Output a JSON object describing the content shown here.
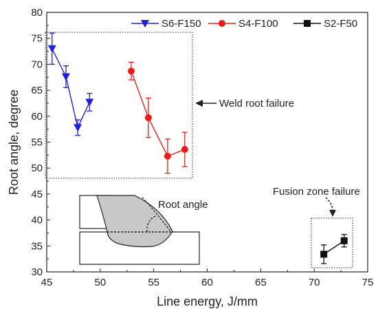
{
  "chart_data": {
    "type": "scatter",
    "xlabel": "Line energy, J/mm",
    "ylabel": "Root angle, degree",
    "xlim": [
      45,
      75
    ],
    "ylim": [
      30,
      80
    ],
    "xticks": [
      45,
      50,
      55,
      60,
      65,
      70,
      75
    ],
    "yticks": [
      30,
      35,
      40,
      45,
      50,
      55,
      60,
      65,
      70,
      75,
      80
    ],
    "legend_position": "top-right",
    "series": [
      {
        "name": "S6-F150",
        "color": "#1f1fd6",
        "marker": "triangle-down",
        "points": [
          {
            "x": 45.5,
            "y": 73.0,
            "err": 3.0
          },
          {
            "x": 46.8,
            "y": 67.6,
            "err": 2.1
          },
          {
            "x": 47.9,
            "y": 57.8,
            "err": 1.5
          },
          {
            "x": 49.0,
            "y": 62.7,
            "err": 1.7
          }
        ]
      },
      {
        "name": "S4-F100",
        "color": "#ee1b1b",
        "marker": "circle",
        "points": [
          {
            "x": 52.9,
            "y": 68.7,
            "err": 1.7
          },
          {
            "x": 54.5,
            "y": 59.7,
            "err": 3.8
          },
          {
            "x": 56.3,
            "y": 52.3,
            "err": 3.3
          },
          {
            "x": 57.9,
            "y": 53.6,
            "err": 3.3
          }
        ]
      },
      {
        "name": "S2-F50",
        "color": "#111111",
        "marker": "square",
        "points": [
          {
            "x": 70.9,
            "y": 33.4,
            "err": 1.8
          },
          {
            "x": 72.8,
            "y": 36.0,
            "err": 1.2
          }
        ]
      }
    ],
    "annotations": {
      "weld_root_failure": "Weld root failure",
      "fusion_zone_failure": "Fusion zone failure",
      "root_angle": "Root angle"
    },
    "inset_region": [
      {
        "x": 45,
        "y": 44.8
      },
      {
        "x": 57,
        "y": 37.6
      }
    ]
  }
}
